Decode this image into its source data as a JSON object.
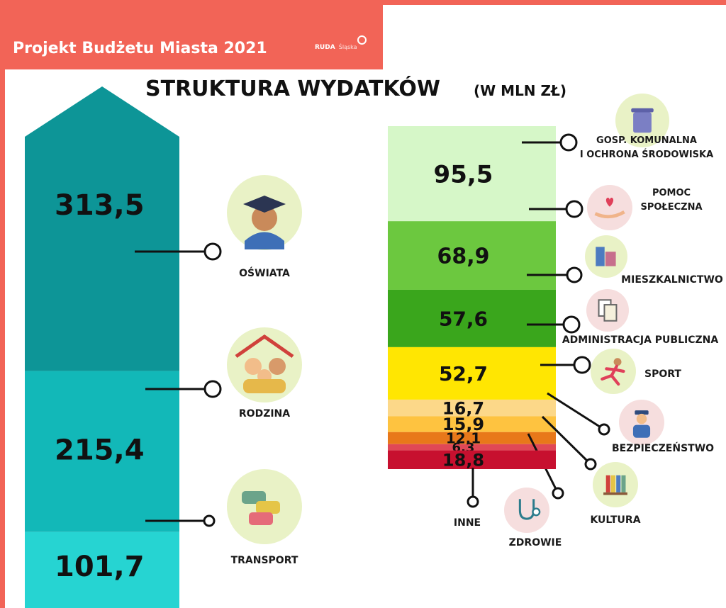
{
  "header": {
    "title": "Projekt Budżetu Miasta 2021",
    "logo_main": "RUDA",
    "logo_sub": "Śląska"
  },
  "title": "STRUKTURA WYDATKÓW",
  "subtitle": "(W MLN ZŁ)",
  "colors": {
    "header": "#f26457",
    "left": [
      "#0d9597",
      "#12b8b8",
      "#26d4d2"
    ],
    "right": [
      "#d6f7c8",
      "#6cc83f",
      "#3aa61c",
      "#ffe602",
      "#fcd889",
      "#fec340",
      "#e8781a",
      "#e04856",
      "#c7102f"
    ]
  },
  "chart_data": [
    {
      "type": "bar",
      "stacked": true,
      "categories": [
        "OŚWIATA",
        "RODZINA",
        "TRANSPORT"
      ],
      "values": [
        313.5,
        215.4,
        101.7
      ],
      "value_labels": [
        "313,5",
        "215,4",
        "101,7"
      ],
      "icons": [
        "graduate-icon",
        "family-icon",
        "cars-icon"
      ]
    },
    {
      "type": "bar",
      "stacked": true,
      "categories": [
        "GOSP. KOMUNALNA I OCHRONA ŚRODOWISKA",
        "POMOC SPOŁECZNA",
        "MIESZKALNICTWO",
        "ADMINISTRACJA PUBLICZNA",
        "SPORT",
        "BEZPIECZEŃSTWO",
        "KULTURA",
        "ZDROWIE",
        "INNE"
      ],
      "label_lines": [
        [
          "GOSP. KOMUNALNA",
          "I OCHRONA ŚRODOWISKA"
        ],
        [
          "POMOC",
          "SPOŁECZNA"
        ],
        [
          "MIESZKALNICTWO"
        ],
        [
          "ADMINISTRACJA PUBLICZNA"
        ],
        [
          "SPORT"
        ],
        [
          "BEZPIECZEŃSTWO"
        ],
        [
          "KULTURA"
        ],
        [
          "ZDROWIE"
        ],
        [
          "INNE"
        ]
      ],
      "values": [
        95.5,
        68.9,
        57.6,
        52.7,
        16.7,
        15.9,
        12.1,
        6.3,
        18.8
      ],
      "value_labels": [
        "95,5",
        "68,9",
        "57,6",
        "52,7",
        "16,7",
        "15,9",
        "12,1",
        "6,3",
        "18,8"
      ],
      "icons": [
        "trash-bin-icon",
        "heart-hand-icon",
        "buildings-icon",
        "documents-icon",
        "runner-icon",
        "police-icon",
        "books-icon",
        "stethoscope-icon",
        ""
      ]
    }
  ]
}
